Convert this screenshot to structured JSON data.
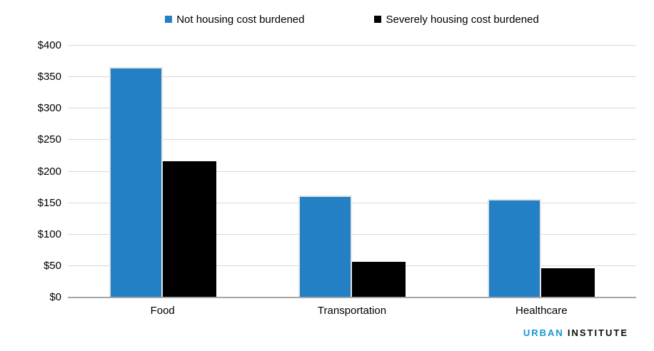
{
  "chart_data": {
    "type": "bar",
    "categories": [
      "Food",
      "Transportation",
      "Healthcare"
    ],
    "series": [
      {
        "name": "Not housing cost burdened",
        "color": "#2380c4",
        "values": [
          366,
          162,
          156
        ]
      },
      {
        "name": "Severely housing cost burdened",
        "color": "#000000",
        "values": [
          216,
          57,
          46
        ]
      }
    ],
    "title": "",
    "xlabel": "",
    "ylabel": "",
    "ylim": [
      0,
      400
    ],
    "y_tick_interval": 50,
    "y_tick_labels": [
      "$0",
      "$50",
      "$100",
      "$150",
      "$200",
      "$250",
      "$300",
      "$350",
      "$400"
    ],
    "grid": "horizontal",
    "legend_position": "top"
  },
  "colors": {
    "gridline": "#d9d9d9",
    "axis_line": "#a6a6a6",
    "logo_blue": "#1696d2",
    "logo_black": "#0d0d0d"
  },
  "footer": {
    "logo_urban": "URBAN",
    "logo_institute": "INSTITUTE"
  }
}
